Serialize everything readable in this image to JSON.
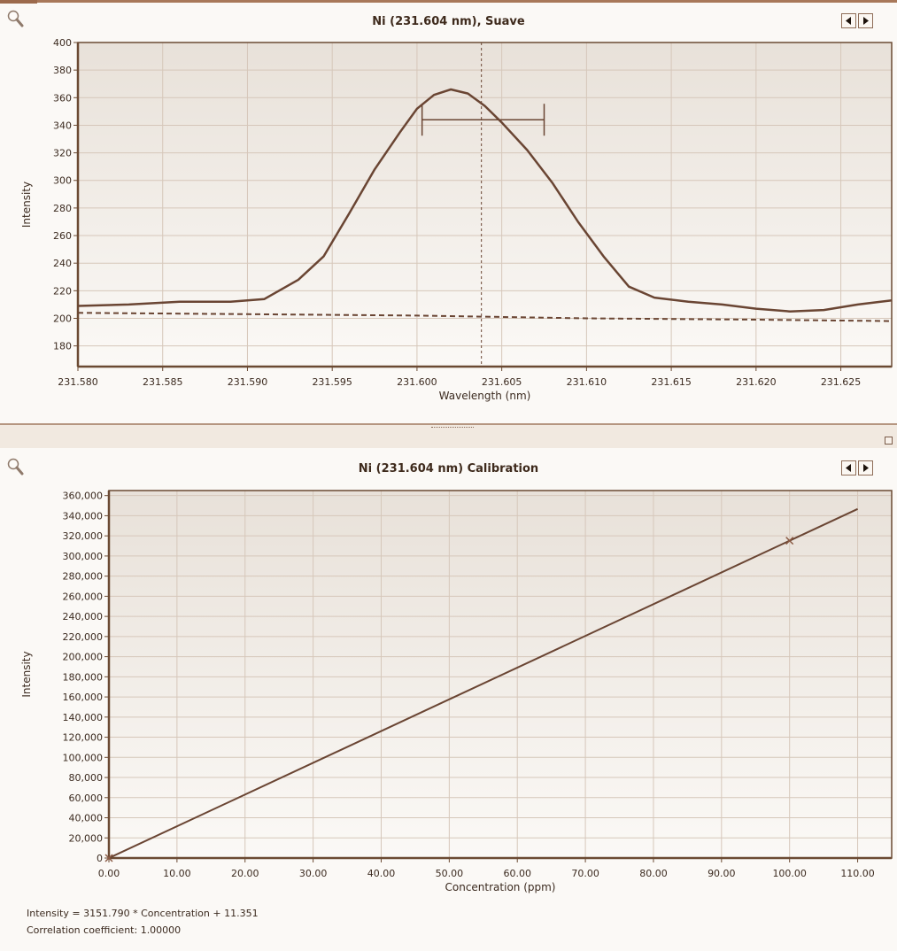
{
  "colors": {
    "plot_bg_top": "#e9e3dc",
    "plot_bg_bottom": "#fbf9f6",
    "frame": "#6b4a33",
    "grid": "#d6c7ba",
    "line": "#6a4533"
  },
  "icons": {
    "zoom": "magnifier-icon",
    "prev": "arrow-left-icon",
    "next": "arrow-right-icon"
  },
  "spectrum": {
    "title": "Ni (231.604 nm), Suave",
    "chart_data": {
      "type": "line",
      "xlabel": "Wavelength (nm)",
      "ylabel": "Intensity",
      "xlim": [
        231.58,
        231.628
      ],
      "ylim": [
        165,
        400
      ],
      "xticks": [
        "231.580",
        "231.585",
        "231.590",
        "231.595",
        "231.600",
        "231.605",
        "231.610",
        "231.615",
        "231.620",
        "231.625"
      ],
      "yticks": [
        "180",
        "200",
        "220",
        "240",
        "260",
        "280",
        "300",
        "320",
        "340",
        "360",
        "380",
        "400"
      ],
      "grid": true,
      "series": [
        {
          "style": "solid",
          "x": [
            231.58,
            231.583,
            231.586,
            231.589,
            231.591,
            231.593,
            231.5945,
            231.596,
            231.5975,
            231.599,
            231.6,
            231.601,
            231.602,
            231.603,
            231.604,
            231.605,
            231.6065,
            231.608,
            231.6095,
            231.611,
            231.6125,
            231.614,
            231.616,
            231.618,
            231.62,
            231.622,
            231.624,
            231.626,
            231.628
          ],
          "y": [
            209,
            210,
            212,
            212,
            214,
            228,
            245,
            276,
            308,
            335,
            352,
            362,
            366,
            363,
            354,
            342,
            322,
            298,
            270,
            245,
            223,
            215,
            212,
            210,
            207,
            205,
            206,
            210,
            213
          ]
        },
        {
          "style": "dashed",
          "x": [
            231.58,
            231.59,
            231.6,
            231.61,
            231.62,
            231.628
          ],
          "y": [
            204,
            203,
            202,
            200,
            199,
            198
          ]
        }
      ],
      "marker_line_x": 231.6038,
      "peak_range": {
        "x_start": 231.6003,
        "x_end": 231.6075,
        "y": 344
      }
    }
  },
  "calibration": {
    "title": "Ni (231.604 nm) Calibration",
    "equation": "Intensity = 3151.790 * Concentration + 11.351",
    "correlation": "Correlation coefficient: 1.00000",
    "chart_data": {
      "type": "line",
      "xlabel": "Concentration (ppm)",
      "ylabel": "Intensity",
      "xlim": [
        0,
        115
      ],
      "ylim": [
        0,
        365000
      ],
      "xticks": [
        "0.00",
        "10.00",
        "20.00",
        "30.00",
        "40.00",
        "50.00",
        "60.00",
        "70.00",
        "80.00",
        "90.00",
        "100.00",
        "110.00"
      ],
      "yticks": [
        "0",
        "20,000",
        "40,000",
        "60,000",
        "80,000",
        "100,000",
        "120,000",
        "140,000",
        "160,000",
        "180,000",
        "200,000",
        "220,000",
        "240,000",
        "260,000",
        "280,000",
        "300,000",
        "320,000",
        "340,000",
        "360,000"
      ],
      "grid": true,
      "line": {
        "x": [
          0,
          110
        ],
        "y": [
          11.351,
          346708.25
        ]
      },
      "points": [
        {
          "x": 0,
          "y": 0
        },
        {
          "x": 100,
          "y": 315190
        }
      ]
    }
  }
}
